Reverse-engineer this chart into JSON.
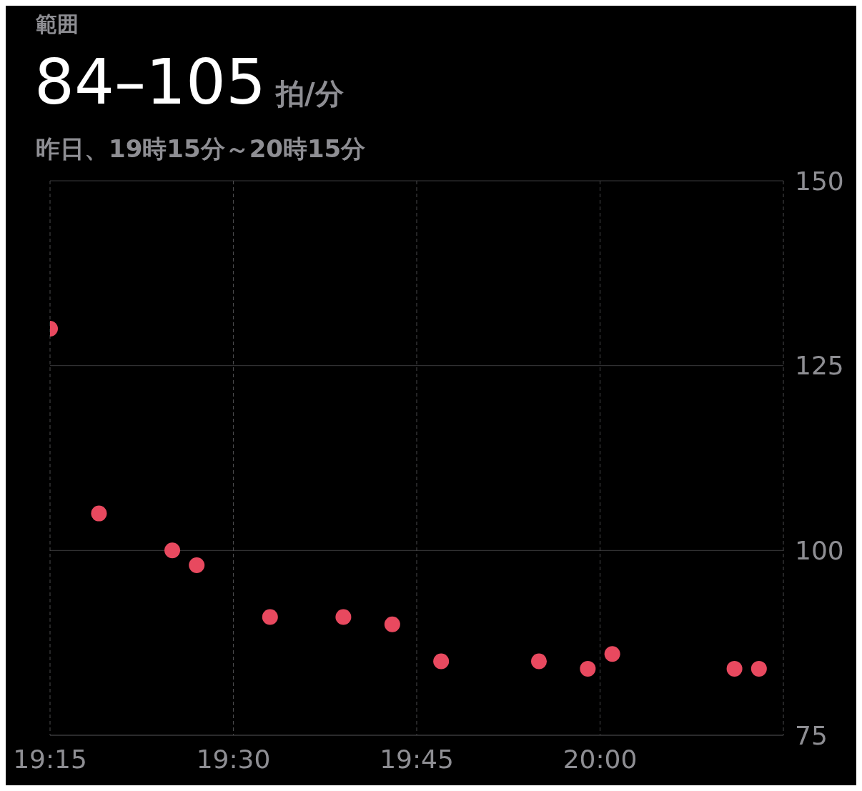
{
  "chart_data": {
    "type": "scatter",
    "title": "範囲",
    "subtitle": "昨日、19時15分～20時15分",
    "annotations": [
      "84–105",
      "拍/分"
    ],
    "x": [
      19.25,
      19.3167,
      19.4167,
      19.45,
      19.55,
      19.65,
      19.7167,
      19.7833,
      19.9167,
      19.9833,
      20.0167,
      20.1833,
      20.2167
    ],
    "series": [
      {
        "color": "#e8495f",
        "values": [
          130,
          105,
          100,
          98,
          91,
          91,
          90,
          85,
          85,
          84,
          86,
          84,
          84
        ]
      }
    ],
    "xlim": [
      19.25,
      20.25
    ],
    "xticks": [
      {
        "value": 19.25,
        "label": "19:15"
      },
      {
        "value": 19.5,
        "label": "19:30"
      },
      {
        "value": 19.75,
        "label": "19:45"
      },
      {
        "value": 20,
        "label": "20:00"
      },
      {
        "value": 20.25,
        "label": null
      }
    ],
    "ylim": [
      75,
      150
    ],
    "yticks": [
      75,
      100,
      125,
      150
    ],
    "grid": true,
    "marker": "circle"
  }
}
